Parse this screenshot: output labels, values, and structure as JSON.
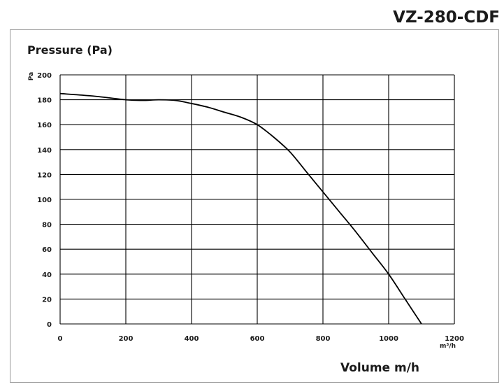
{
  "header": {
    "model": "VZ-280-CDF"
  },
  "chart_data": {
    "type": "line",
    "title": "Pressure (Pa)",
    "ylabel": "Pa",
    "xlabel": "Volume m/h",
    "x_unit": "m³/h",
    "xlim": [
      0,
      1200
    ],
    "ylim": [
      0,
      200
    ],
    "x_ticks": [
      "0",
      "200",
      "400",
      "600",
      "800",
      "1000",
      "1200"
    ],
    "y_ticks": [
      "0",
      "20",
      "40",
      "60",
      "80",
      "100",
      "120",
      "140",
      "160",
      "180",
      "200"
    ],
    "grid": true,
    "legend": "none",
    "series": [
      {
        "x": [
          0,
          100,
          200,
          250,
          300,
          350,
          400,
          450,
          500,
          550,
          600,
          650,
          700,
          750,
          800,
          850,
          900,
          950,
          1000,
          1050,
          1100
        ],
        "y": [
          185,
          183,
          180,
          179.5,
          180,
          179.5,
          177,
          174,
          170,
          166,
          160,
          150,
          138,
          122,
          106,
          90,
          74,
          57,
          40,
          20,
          0
        ]
      }
    ],
    "colors": {
      "line": "#000000",
      "grid": "#000000",
      "frame": "#9a9a9a"
    }
  }
}
